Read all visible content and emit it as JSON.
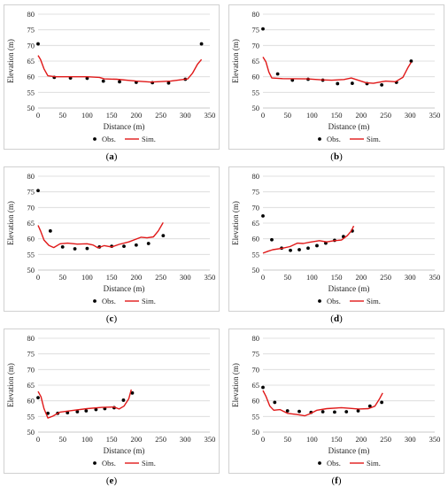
{
  "chart_data": [
    {
      "type": "line",
      "panel_label": "a",
      "xlabel": "Distance (m)",
      "ylabel": "Elevation (m)",
      "xlim": [
        0,
        350
      ],
      "ylim": [
        50,
        80
      ],
      "xticks": [
        0,
        50,
        100,
        150,
        200,
        250,
        300,
        350
      ],
      "yticks": [
        50,
        55,
        60,
        65,
        70,
        75,
        80
      ],
      "legend": {
        "obs": "Obs.",
        "sim": "Sim.",
        "position": "bottom"
      },
      "colors": {
        "obs": "#000000",
        "sim": "#e01818"
      },
      "series": [
        {
          "name": "Obs.",
          "kind": "points",
          "points": [
            [
              0,
              70.5
            ],
            [
              33,
              59.8
            ],
            [
              66,
              59.6
            ],
            [
              100,
              59.5
            ],
            [
              133,
              58.6
            ],
            [
              166,
              58.4
            ],
            [
              200,
              58.2
            ],
            [
              233,
              58.1
            ],
            [
              266,
              58.0
            ],
            [
              300,
              59.2
            ],
            [
              333,
              70.5
            ]
          ]
        },
        {
          "name": "Sim.",
          "kind": "line",
          "points": [
            [
              0,
              66.8
            ],
            [
              5,
              65.5
            ],
            [
              12,
              62.5
            ],
            [
              20,
              60.3
            ],
            [
              35,
              60.0
            ],
            [
              60,
              60.0
            ],
            [
              100,
              60.0
            ],
            [
              125,
              59.8
            ],
            [
              135,
              59.3
            ],
            [
              160,
              59.2
            ],
            [
              200,
              58.6
            ],
            [
              230,
              58.3
            ],
            [
              270,
              58.6
            ],
            [
              295,
              59.1
            ],
            [
              305,
              59.3
            ],
            [
              315,
              61.2
            ],
            [
              325,
              64.0
            ],
            [
              333,
              65.5
            ]
          ]
        }
      ]
    },
    {
      "type": "line",
      "panel_label": "b",
      "xlabel": "Distance (m)",
      "ylabel": "Elevation (m)",
      "xlim": [
        0,
        350
      ],
      "ylim": [
        50,
        80
      ],
      "xticks": [
        0,
        50,
        100,
        150,
        200,
        250,
        300,
        350
      ],
      "yticks": [
        50,
        55,
        60,
        65,
        70,
        75,
        80
      ],
      "legend": {
        "obs": "Obs.",
        "sim": "Sim.",
        "position": "bottom"
      },
      "colors": {
        "obs": "#000000",
        "sim": "#e01818"
      },
      "series": [
        {
          "name": "Obs.",
          "kind": "points",
          "points": [
            [
              0,
              75.3
            ],
            [
              30,
              60.9
            ],
            [
              60,
              58.9
            ],
            [
              92,
              59.2
            ],
            [
              122,
              58.9
            ],
            [
              152,
              57.8
            ],
            [
              182,
              57.9
            ],
            [
              212,
              57.8
            ],
            [
              242,
              57.4
            ],
            [
              272,
              58.2
            ],
            [
              302,
              65.0
            ]
          ]
        },
        {
          "name": "Sim.",
          "kind": "line",
          "points": [
            [
              0,
              66.3
            ],
            [
              6,
              64.8
            ],
            [
              12,
              61.5
            ],
            [
              18,
              59.6
            ],
            [
              40,
              59.4
            ],
            [
              90,
              59.3
            ],
            [
              120,
              59.0
            ],
            [
              140,
              58.9
            ],
            [
              165,
              59.1
            ],
            [
              180,
              59.6
            ],
            [
              210,
              58.1
            ],
            [
              225,
              57.9
            ],
            [
              250,
              58.6
            ],
            [
              270,
              58.4
            ],
            [
              285,
              59.8
            ],
            [
              295,
              62.8
            ],
            [
              302,
              64.6
            ]
          ]
        }
      ]
    },
    {
      "type": "line",
      "panel_label": "c",
      "xlabel": "Distance (m)",
      "ylabel": "Elevation (m)",
      "xlim": [
        0,
        350
      ],
      "ylim": [
        50,
        80
      ],
      "xticks": [
        0,
        50,
        100,
        150,
        200,
        250,
        300,
        350
      ],
      "yticks": [
        50,
        55,
        60,
        65,
        70,
        75,
        80
      ],
      "legend": {
        "obs": "Obs.",
        "sim": "Sim.",
        "position": "bottom"
      },
      "colors": {
        "obs": "#000000",
        "sim": "#e01818"
      },
      "series": [
        {
          "name": "Obs.",
          "kind": "points",
          "points": [
            [
              0,
              75.4
            ],
            [
              25,
              62.5
            ],
            [
              50,
              57.4
            ],
            [
              75,
              56.8
            ],
            [
              100,
              56.9
            ],
            [
              125,
              57.4
            ],
            [
              150,
              57.6
            ],
            [
              175,
              57.6
            ],
            [
              200,
              58.0
            ],
            [
              225,
              58.5
            ],
            [
              255,
              61.0
            ]
          ]
        },
        {
          "name": "Sim.",
          "kind": "line",
          "points": [
            [
              0,
              64.3
            ],
            [
              5,
              62.5
            ],
            [
              12,
              59.6
            ],
            [
              22,
              57.9
            ],
            [
              32,
              57.2
            ],
            [
              45,
              58.4
            ],
            [
              60,
              58.6
            ],
            [
              80,
              58.3
            ],
            [
              100,
              58.4
            ],
            [
              112,
              58.0
            ],
            [
              122,
              57.1
            ],
            [
              135,
              57.8
            ],
            [
              150,
              57.4
            ],
            [
              165,
              58.2
            ],
            [
              185,
              59.0
            ],
            [
              210,
              60.5
            ],
            [
              222,
              60.3
            ],
            [
              235,
              60.6
            ],
            [
              245,
              62.5
            ],
            [
              255,
              65.2
            ]
          ]
        }
      ]
    },
    {
      "type": "line",
      "panel_label": "d",
      "xlabel": "Distance (m)",
      "ylabel": "Elevation (m)",
      "xlim": [
        0,
        350
      ],
      "ylim": [
        50,
        80
      ],
      "xticks": [
        0,
        50,
        100,
        150,
        200,
        250,
        300,
        350
      ],
      "yticks": [
        50,
        55,
        60,
        65,
        70,
        75,
        80
      ],
      "legend": {
        "obs": "Obs.",
        "sim": "Sim.",
        "position": "bottom"
      },
      "colors": {
        "obs": "#000000",
        "sim": "#e01818"
      },
      "series": [
        {
          "name": "Obs.",
          "kind": "points",
          "points": [
            [
              0,
              67.3
            ],
            [
              18,
              59.7
            ],
            [
              38,
              57.0
            ],
            [
              56,
              56.3
            ],
            [
              74,
              56.5
            ],
            [
              92,
              57.0
            ],
            [
              110,
              57.8
            ],
            [
              128,
              58.6
            ],
            [
              146,
              59.5
            ],
            [
              164,
              60.7
            ],
            [
              182,
              62.5
            ]
          ]
        },
        {
          "name": "Sim.",
          "kind": "line",
          "points": [
            [
              0,
              55.4
            ],
            [
              10,
              56.0
            ],
            [
              20,
              56.5
            ],
            [
              40,
              57.0
            ],
            [
              55,
              57.5
            ],
            [
              70,
              58.6
            ],
            [
              82,
              58.5
            ],
            [
              95,
              58.9
            ],
            [
              115,
              59.4
            ],
            [
              130,
              59.0
            ],
            [
              145,
              59.4
            ],
            [
              160,
              59.6
            ],
            [
              172,
              61.0
            ],
            [
              180,
              62.5
            ],
            [
              185,
              64.1
            ]
          ]
        }
      ]
    },
    {
      "type": "line",
      "panel_label": "e",
      "xlabel": "Distance (m)",
      "ylabel": "Elevation (m)",
      "xlim": [
        0,
        350
      ],
      "ylim": [
        50,
        80
      ],
      "xticks": [
        0,
        50,
        100,
        150,
        200,
        250,
        300,
        350
      ],
      "yticks": [
        50,
        55,
        60,
        65,
        70,
        75,
        80
      ],
      "legend": {
        "obs": "Obs.",
        "sim": "Sim.",
        "position": "bottom"
      },
      "colors": {
        "obs": "#000000",
        "sim": "#e01818"
      },
      "series": [
        {
          "name": "Obs.",
          "kind": "points",
          "points": [
            [
              0,
              61.0
            ],
            [
              20,
              56.0
            ],
            [
              40,
              56.0
            ],
            [
              60,
              56.2
            ],
            [
              80,
              56.5
            ],
            [
              98,
              56.8
            ],
            [
              118,
              57.2
            ],
            [
              136,
              57.5
            ],
            [
              155,
              57.8
            ],
            [
              174,
              60.2
            ],
            [
              192,
              62.5
            ]
          ]
        },
        {
          "name": "Sim.",
          "kind": "line",
          "points": [
            [
              0,
              63.0
            ],
            [
              6,
              61.3
            ],
            [
              12,
              57.5
            ],
            [
              20,
              54.5
            ],
            [
              30,
              55.1
            ],
            [
              45,
              56.4
            ],
            [
              70,
              56.9
            ],
            [
              100,
              57.5
            ],
            [
              130,
              57.9
            ],
            [
              155,
              58.0
            ],
            [
              165,
              57.4
            ],
            [
              175,
              58.3
            ],
            [
              185,
              60.7
            ],
            [
              190,
              63.6
            ]
          ]
        }
      ]
    },
    {
      "type": "line",
      "panel_label": "f",
      "xlabel": "Distance (m)",
      "ylabel": "Elevation (m)",
      "xlim": [
        0,
        350
      ],
      "ylim": [
        50,
        80
      ],
      "xticks": [
        0,
        50,
        100,
        150,
        200,
        250,
        300,
        350
      ],
      "yticks": [
        50,
        55,
        60,
        65,
        70,
        75,
        80
      ],
      "legend": {
        "obs": "Obs.",
        "sim": "Sim.",
        "position": "bottom"
      },
      "colors": {
        "obs": "#000000",
        "sim": "#e01818"
      },
      "series": [
        {
          "name": "Obs.",
          "kind": "points",
          "points": [
            [
              0,
              64.3
            ],
            [
              24,
              59.5
            ],
            [
              50,
              56.8
            ],
            [
              74,
              56.6
            ],
            [
              98,
              56.3
            ],
            [
              122,
              56.5
            ],
            [
              146,
              56.4
            ],
            [
              170,
              56.5
            ],
            [
              194,
              56.8
            ],
            [
              218,
              58.3
            ],
            [
              242,
              59.5
            ]
          ]
        },
        {
          "name": "Sim.",
          "kind": "line",
          "points": [
            [
              0,
              63.3
            ],
            [
              6,
              61.5
            ],
            [
              14,
              58.3
            ],
            [
              22,
              57.0
            ],
            [
              35,
              57.2
            ],
            [
              50,
              56.0
            ],
            [
              70,
              55.6
            ],
            [
              85,
              55.2
            ],
            [
              95,
              55.8
            ],
            [
              110,
              57.0
            ],
            [
              130,
              57.5
            ],
            [
              160,
              57.8
            ],
            [
              175,
              57.6
            ],
            [
              195,
              57.4
            ],
            [
              215,
              57.5
            ],
            [
              228,
              58.3
            ],
            [
              237,
              60.5
            ],
            [
              244,
              62.5
            ]
          ]
        }
      ]
    }
  ]
}
